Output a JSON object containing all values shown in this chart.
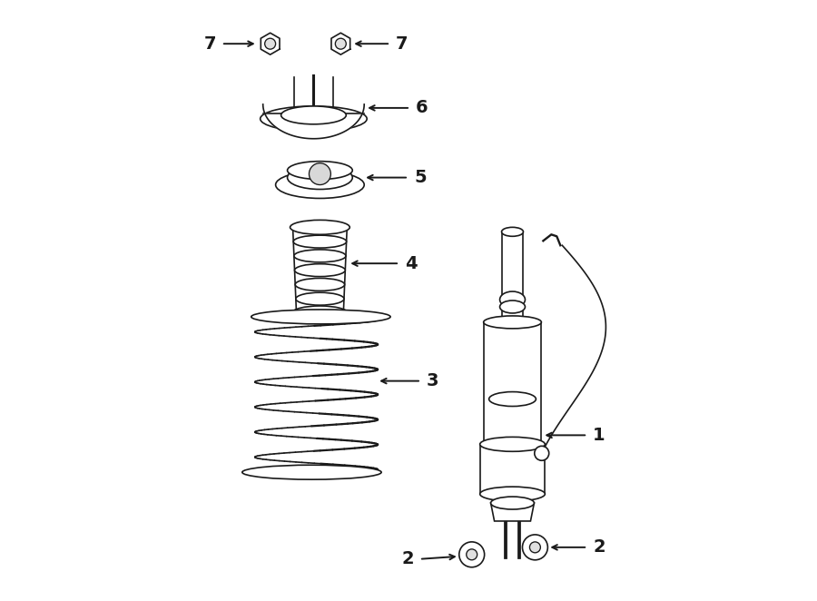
{
  "bg_color": "#ffffff",
  "line_color": "#1a1a1a",
  "fig_width": 9.0,
  "fig_height": 6.62,
  "dpi": 100,
  "lw": 1.2
}
